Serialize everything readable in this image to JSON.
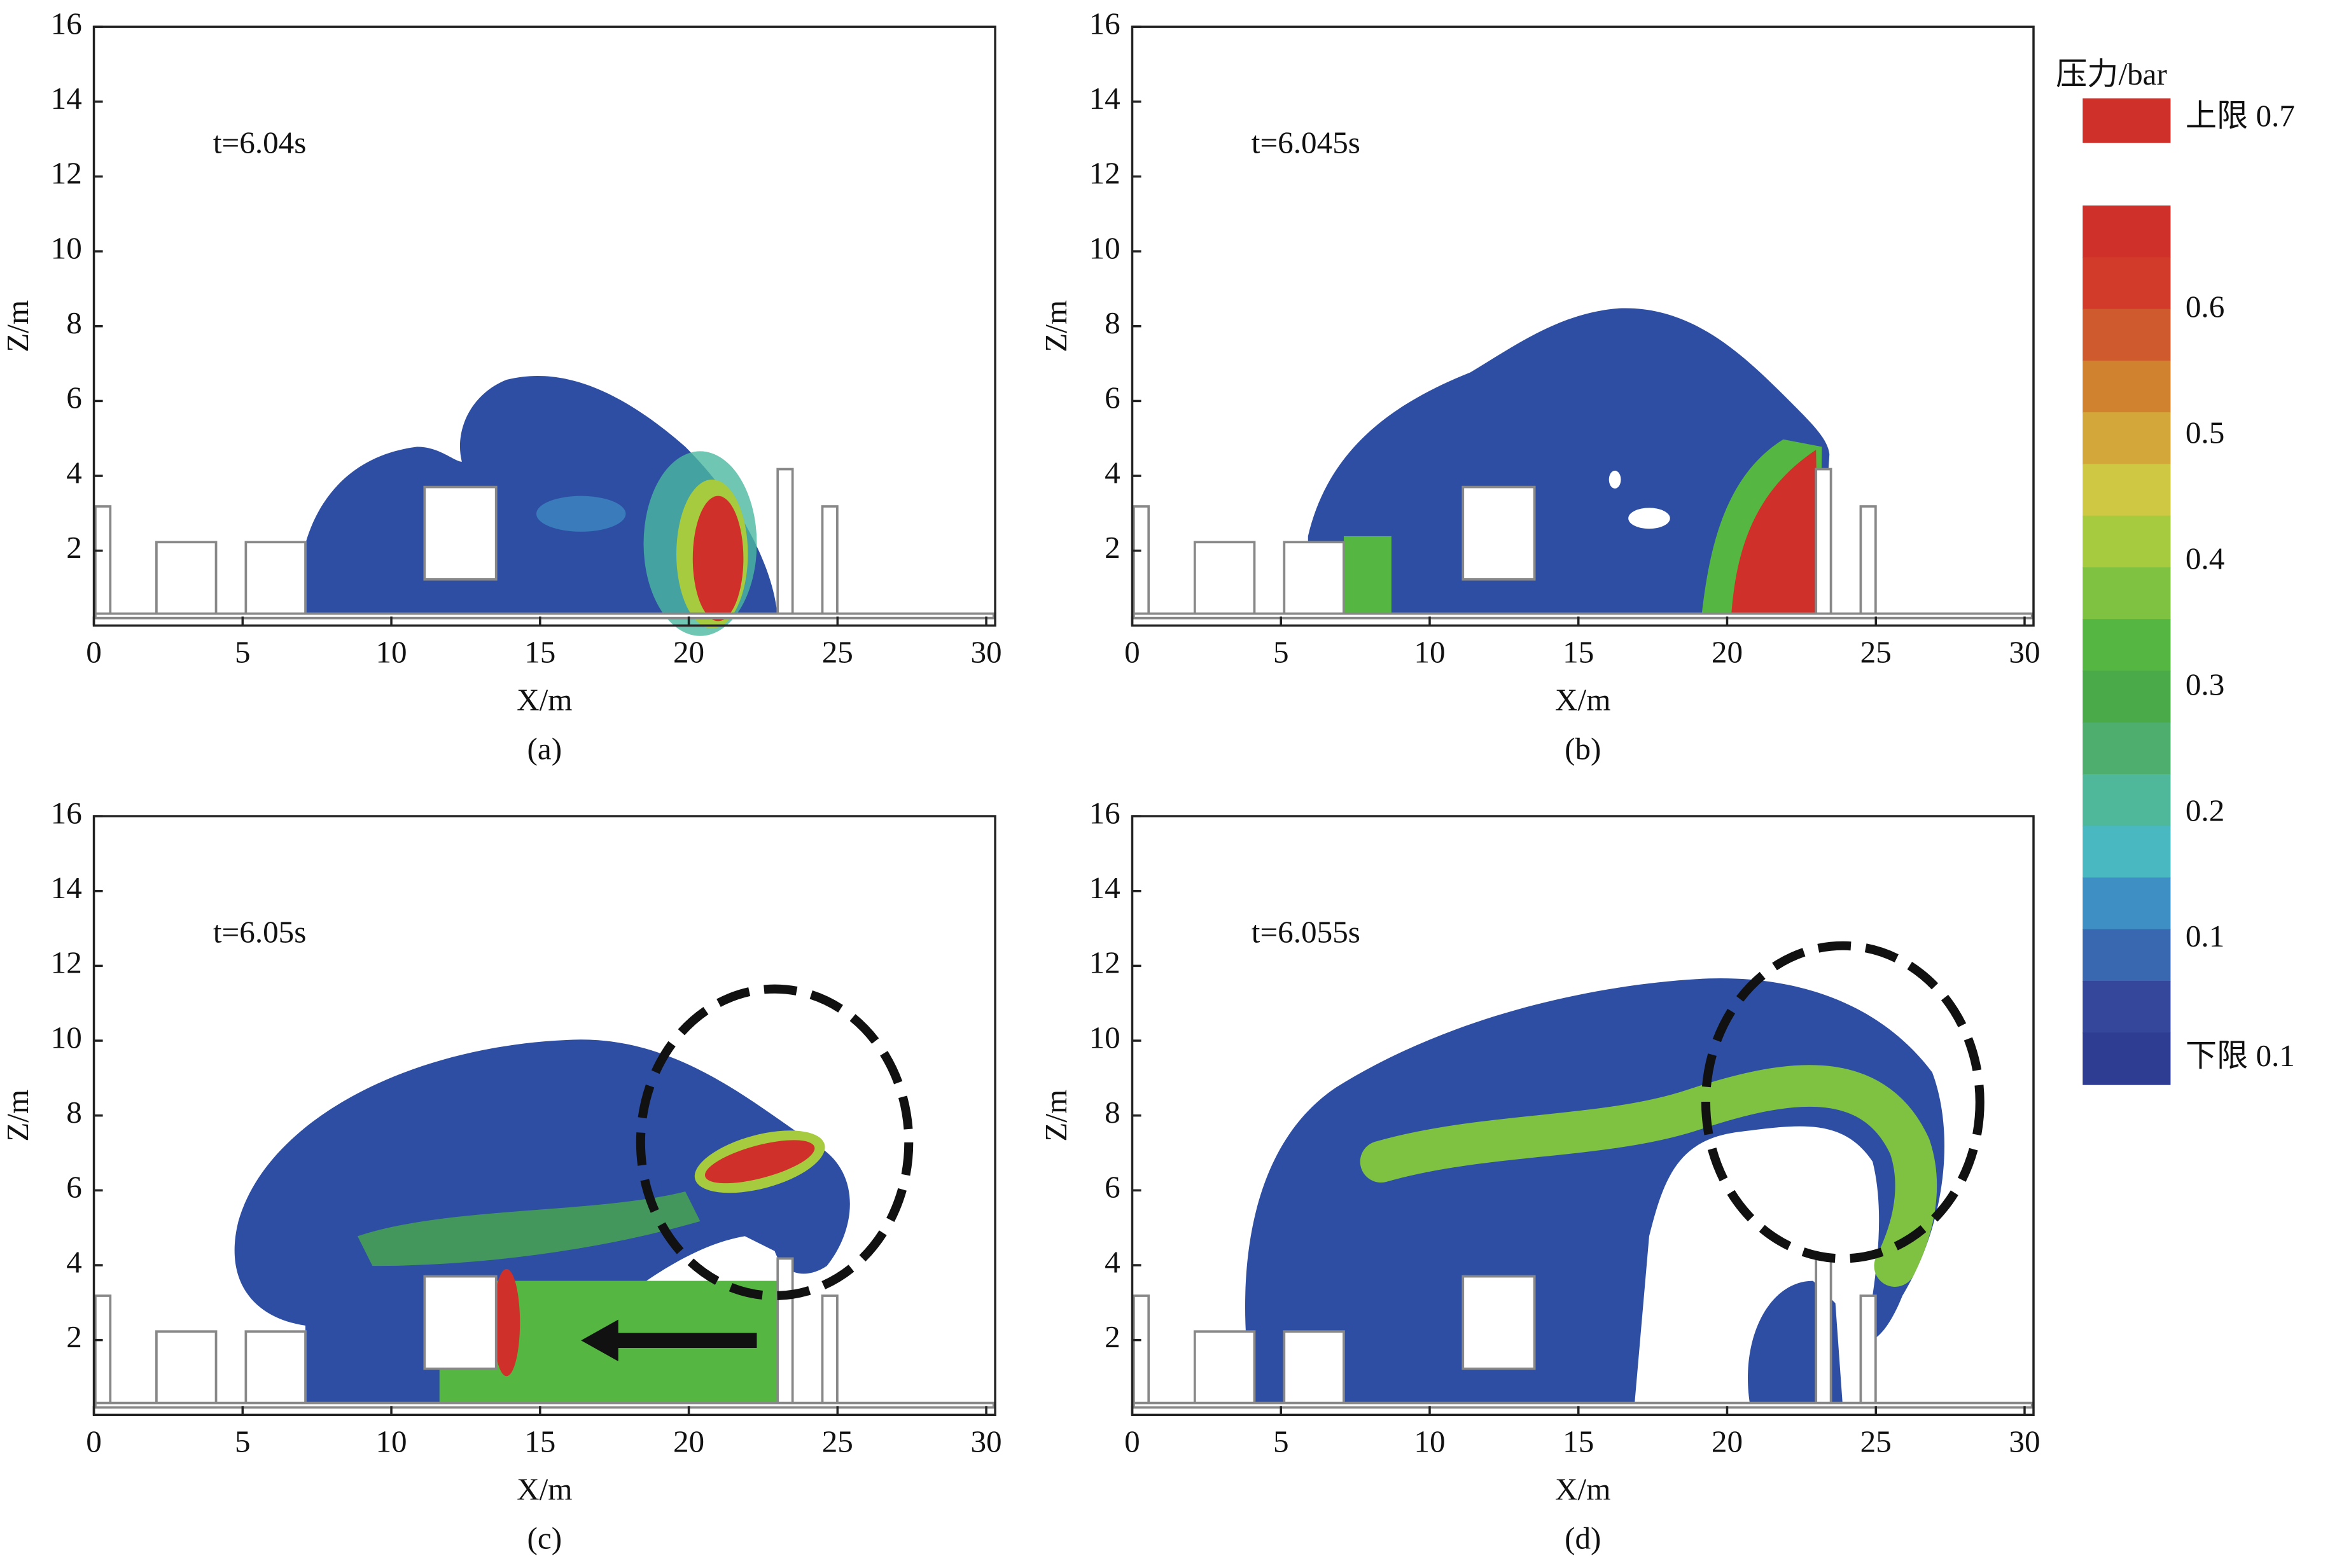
{
  "chart_data": [
    {
      "type": "contour",
      "annotation": "t=6.04s",
      "caption": "(a)",
      "xlabel": "X/m",
      "ylabel": "Z/m",
      "xlim": [
        0,
        30.3
      ],
      "ylim": [
        0,
        16
      ],
      "xticks": [
        0,
        5,
        10,
        15,
        20,
        25,
        30
      ],
      "yticks": [
        2,
        4,
        6,
        8,
        10,
        12,
        14,
        16
      ]
    },
    {
      "type": "contour",
      "annotation": "t=6.045s",
      "caption": "(b)",
      "xlabel": "X/m",
      "ylabel": "Z/m",
      "xlim": [
        0,
        30.3
      ],
      "ylim": [
        0,
        16
      ],
      "xticks": [
        0,
        5,
        10,
        15,
        20,
        25,
        30
      ],
      "yticks": [
        2,
        4,
        6,
        8,
        10,
        12,
        14,
        16
      ]
    },
    {
      "type": "contour",
      "annotation": "t=6.05s",
      "caption": "(c)",
      "xlabel": "X/m",
      "ylabel": "Z/m",
      "xlim": [
        0,
        30.3
      ],
      "ylim": [
        0,
        16
      ],
      "xticks": [
        0,
        5,
        10,
        15,
        20,
        25,
        30
      ],
      "yticks": [
        2,
        4,
        6,
        8,
        10,
        12,
        14,
        16
      ]
    },
    {
      "type": "contour",
      "annotation": "t=6.055s",
      "caption": "(d)",
      "xlabel": "X/m",
      "ylabel": "Z/m",
      "xlim": [
        0,
        30.3
      ],
      "ylim": [
        0,
        16
      ],
      "xticks": [
        0,
        5,
        10,
        15,
        20,
        25,
        30
      ],
      "yticks": [
        2,
        4,
        6,
        8,
        10,
        12,
        14,
        16
      ]
    }
  ],
  "colorbar": {
    "title": "压力/bar",
    "upper_label": "上限 0.7",
    "upper_color": "#d0302a",
    "lower_label": "下限 0.1",
    "lim": [
      -0.015,
      0.683
    ],
    "ticks": [
      0.6,
      0.5,
      0.4,
      0.3,
      0.2,
      0.1
    ],
    "colors": [
      "#d0302a",
      "#d23a2a",
      "#cf5a2e",
      "#d0822f",
      "#d4a73a",
      "#cfc843",
      "#a6cb3f",
      "#7fc241",
      "#55b641",
      "#4aaa4a",
      "#4eae6e",
      "#4fb89a",
      "#4ab8c0",
      "#3e8fc4",
      "#3a68b0",
      "#34479a",
      "#2e3c92"
    ]
  }
}
